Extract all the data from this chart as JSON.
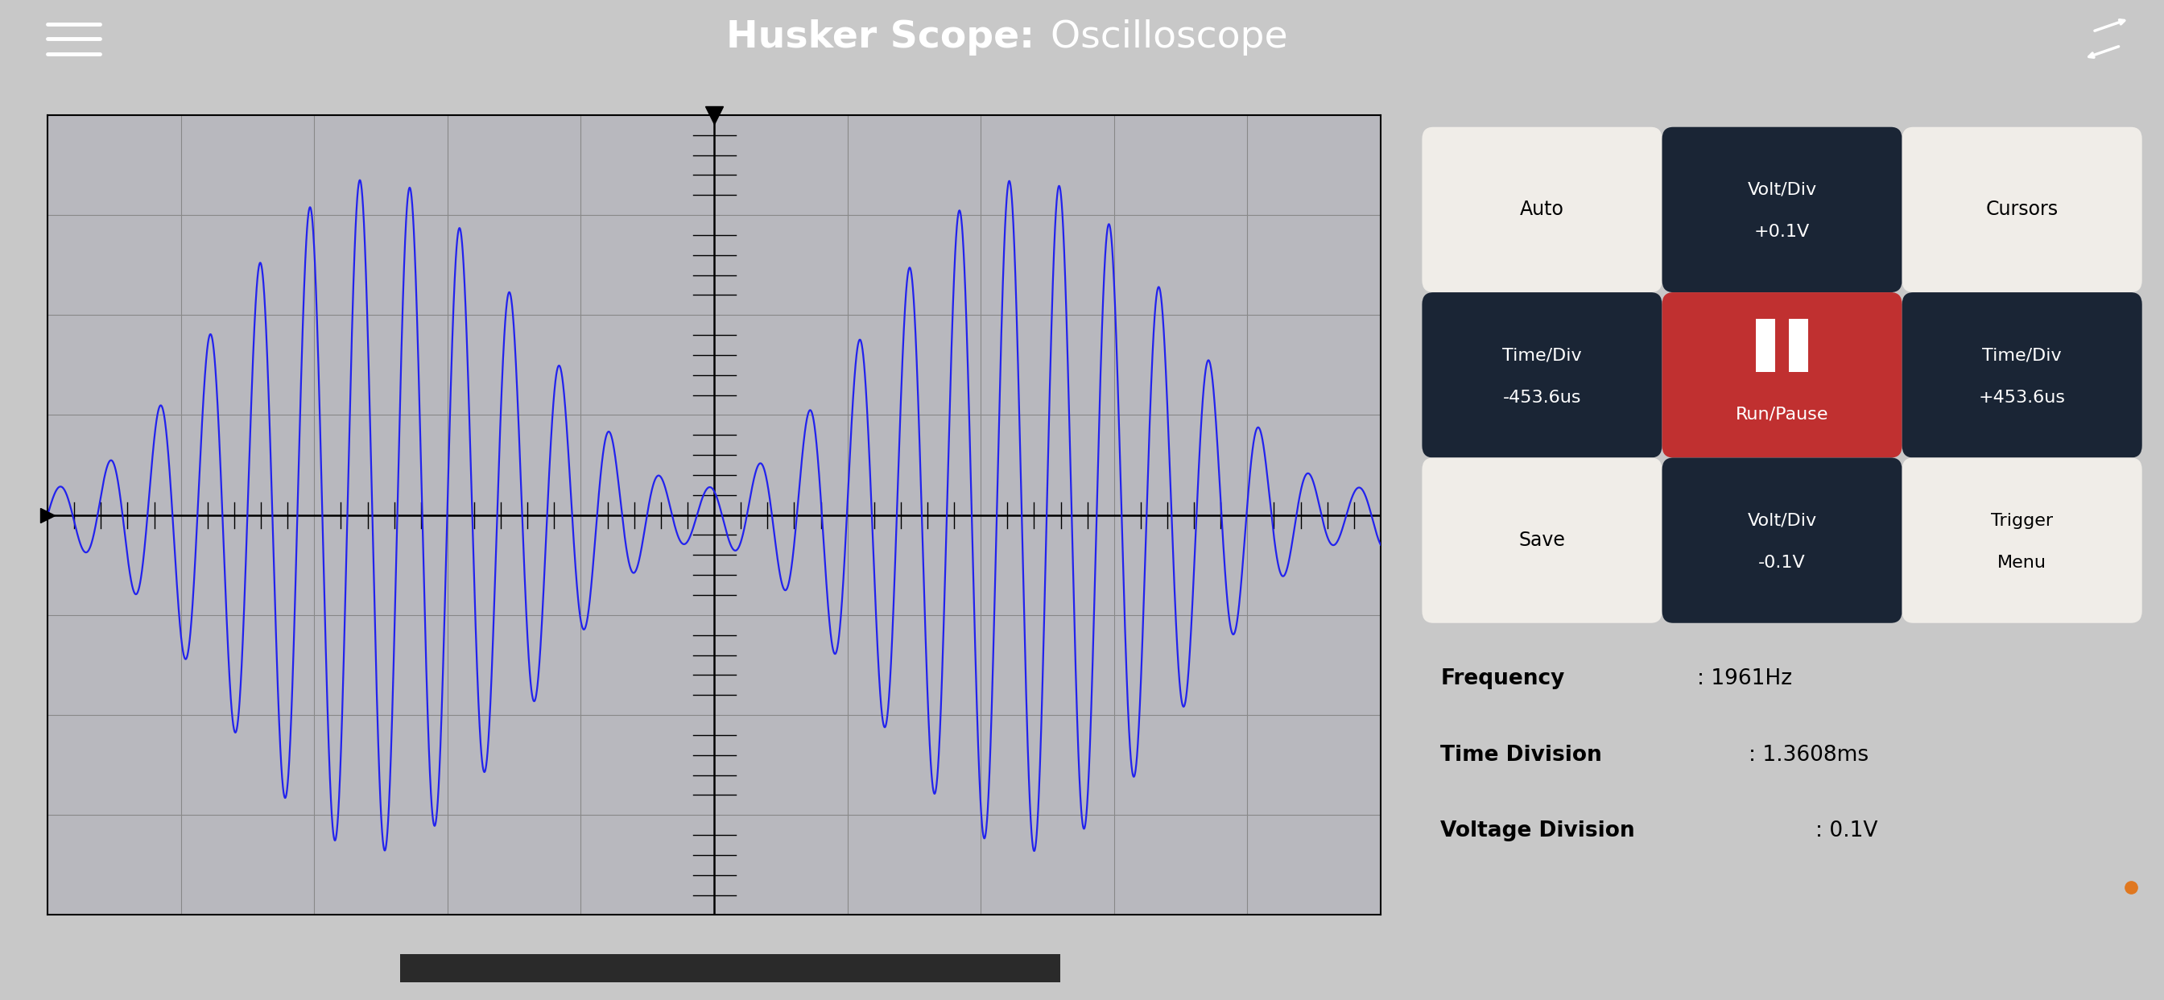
{
  "title_bold": "Husker Scope:",
  "title_normal": " Oscilloscope",
  "header_color": "#c0392b",
  "header_text_color": "#ffffff",
  "bg_color": "#c8c8c8",
  "scope_bg": "#b8b8be",
  "scope_grid_color": "#888888",
  "scope_line_color": "#2222ee",
  "signal_frequency": 1961,
  "time_division_ms": 1.3608,
  "voltage_division": 0.1,
  "button_defs": [
    {
      "label": "Auto",
      "row": 0,
      "col": 0,
      "dark": false,
      "red": false
    },
    {
      "label": "Volt/Div\n+0.1V",
      "row": 0,
      "col": 1,
      "dark": true,
      "red": false
    },
    {
      "label": "Cursors",
      "row": 0,
      "col": 2,
      "dark": false,
      "red": false
    },
    {
      "label": "Time/Div\n-453.6us",
      "row": 1,
      "col": 0,
      "dark": true,
      "red": false
    },
    {
      "label": "Run/Pause",
      "row": 1,
      "col": 1,
      "dark": false,
      "red": true
    },
    {
      "label": "Time/Div\n+453.6us",
      "row": 1,
      "col": 2,
      "dark": true,
      "red": false
    },
    {
      "label": "Save",
      "row": 2,
      "col": 0,
      "dark": false,
      "red": false
    },
    {
      "label": "Volt/Div\n-0.1V",
      "row": 2,
      "col": 1,
      "dark": true,
      "red": false
    },
    {
      "label": "Trigger\nMenu",
      "row": 2,
      "col": 2,
      "dark": false,
      "red": false
    }
  ],
  "info_text": [
    {
      "bold": "Frequency",
      "normal": ": 1961Hz"
    },
    {
      "bold": "Time Division",
      "normal": ": 1.3608ms"
    },
    {
      "bold": "Voltage Division",
      "normal": ": 0.1V"
    }
  ],
  "orange_dot_color": "#e07820",
  "color_dark": "#1a2535",
  "color_light": "#f0ede8",
  "color_red": "#c03030"
}
